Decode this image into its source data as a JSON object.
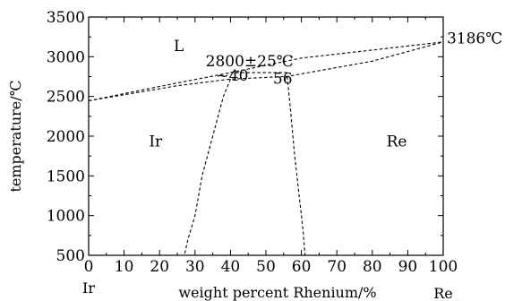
{
  "chart_data": {
    "type": "line",
    "title": "",
    "xlabel": "weight percent Rhenium/%",
    "ylabel": "temperature/℃",
    "xlim": [
      0,
      100
    ],
    "ylim": [
      500,
      3500
    ],
    "xticks": [
      0,
      10,
      20,
      30,
      40,
      50,
      60,
      70,
      80,
      90,
      100
    ],
    "yticks": [
      500,
      1000,
      1500,
      2000,
      2500,
      3000,
      3500
    ],
    "x_end_labels": {
      "left": "Ir",
      "right": "Re"
    },
    "grid": false,
    "legend": "none",
    "line_style": "dashed",
    "series": [
      {
        "points": [
          [
            0,
            2446
          ],
          [
            20,
            2626
          ],
          [
            40,
            2800
          ],
          [
            60,
            2984
          ],
          [
            80,
            3084
          ],
          [
            100,
            3186
          ]
        ]
      },
      {
        "points": [
          [
            0,
            2446
          ],
          [
            25,
            2635
          ],
          [
            40,
            2718
          ],
          [
            56,
            2752
          ],
          [
            80,
            2944
          ],
          [
            100,
            3186
          ]
        ]
      },
      {
        "points": [
          [
            40,
            2800
          ],
          [
            56,
            2800
          ]
        ]
      },
      {
        "points": [
          [
            40,
            2718
          ],
          [
            38,
            2500
          ],
          [
            35,
            2000
          ],
          [
            32,
            1500
          ],
          [
            30,
            1000
          ],
          [
            28,
            700
          ],
          [
            27,
            500
          ]
        ]
      },
      {
        "points": [
          [
            56,
            2752
          ],
          [
            57,
            2300
          ],
          [
            58,
            1800
          ],
          [
            59.5,
            1200
          ],
          [
            60.5,
            800
          ],
          [
            61,
            500
          ]
        ]
      }
    ],
    "annotations": [
      {
        "text": "L",
        "x": 24,
        "y": 3070
      },
      {
        "text": "Ir",
        "x": 17,
        "y": 1870
      },
      {
        "text": "Re",
        "x": 84,
        "y": 1870
      },
      {
        "text": "2800±25℃",
        "x": 33,
        "y": 2880
      },
      {
        "text": "~40",
        "x": 36,
        "y": 2700
      },
      {
        "text": "56",
        "x": 52,
        "y": 2660
      },
      {
        "text": "3186℃",
        "x": 101,
        "y": 3170
      }
    ]
  }
}
